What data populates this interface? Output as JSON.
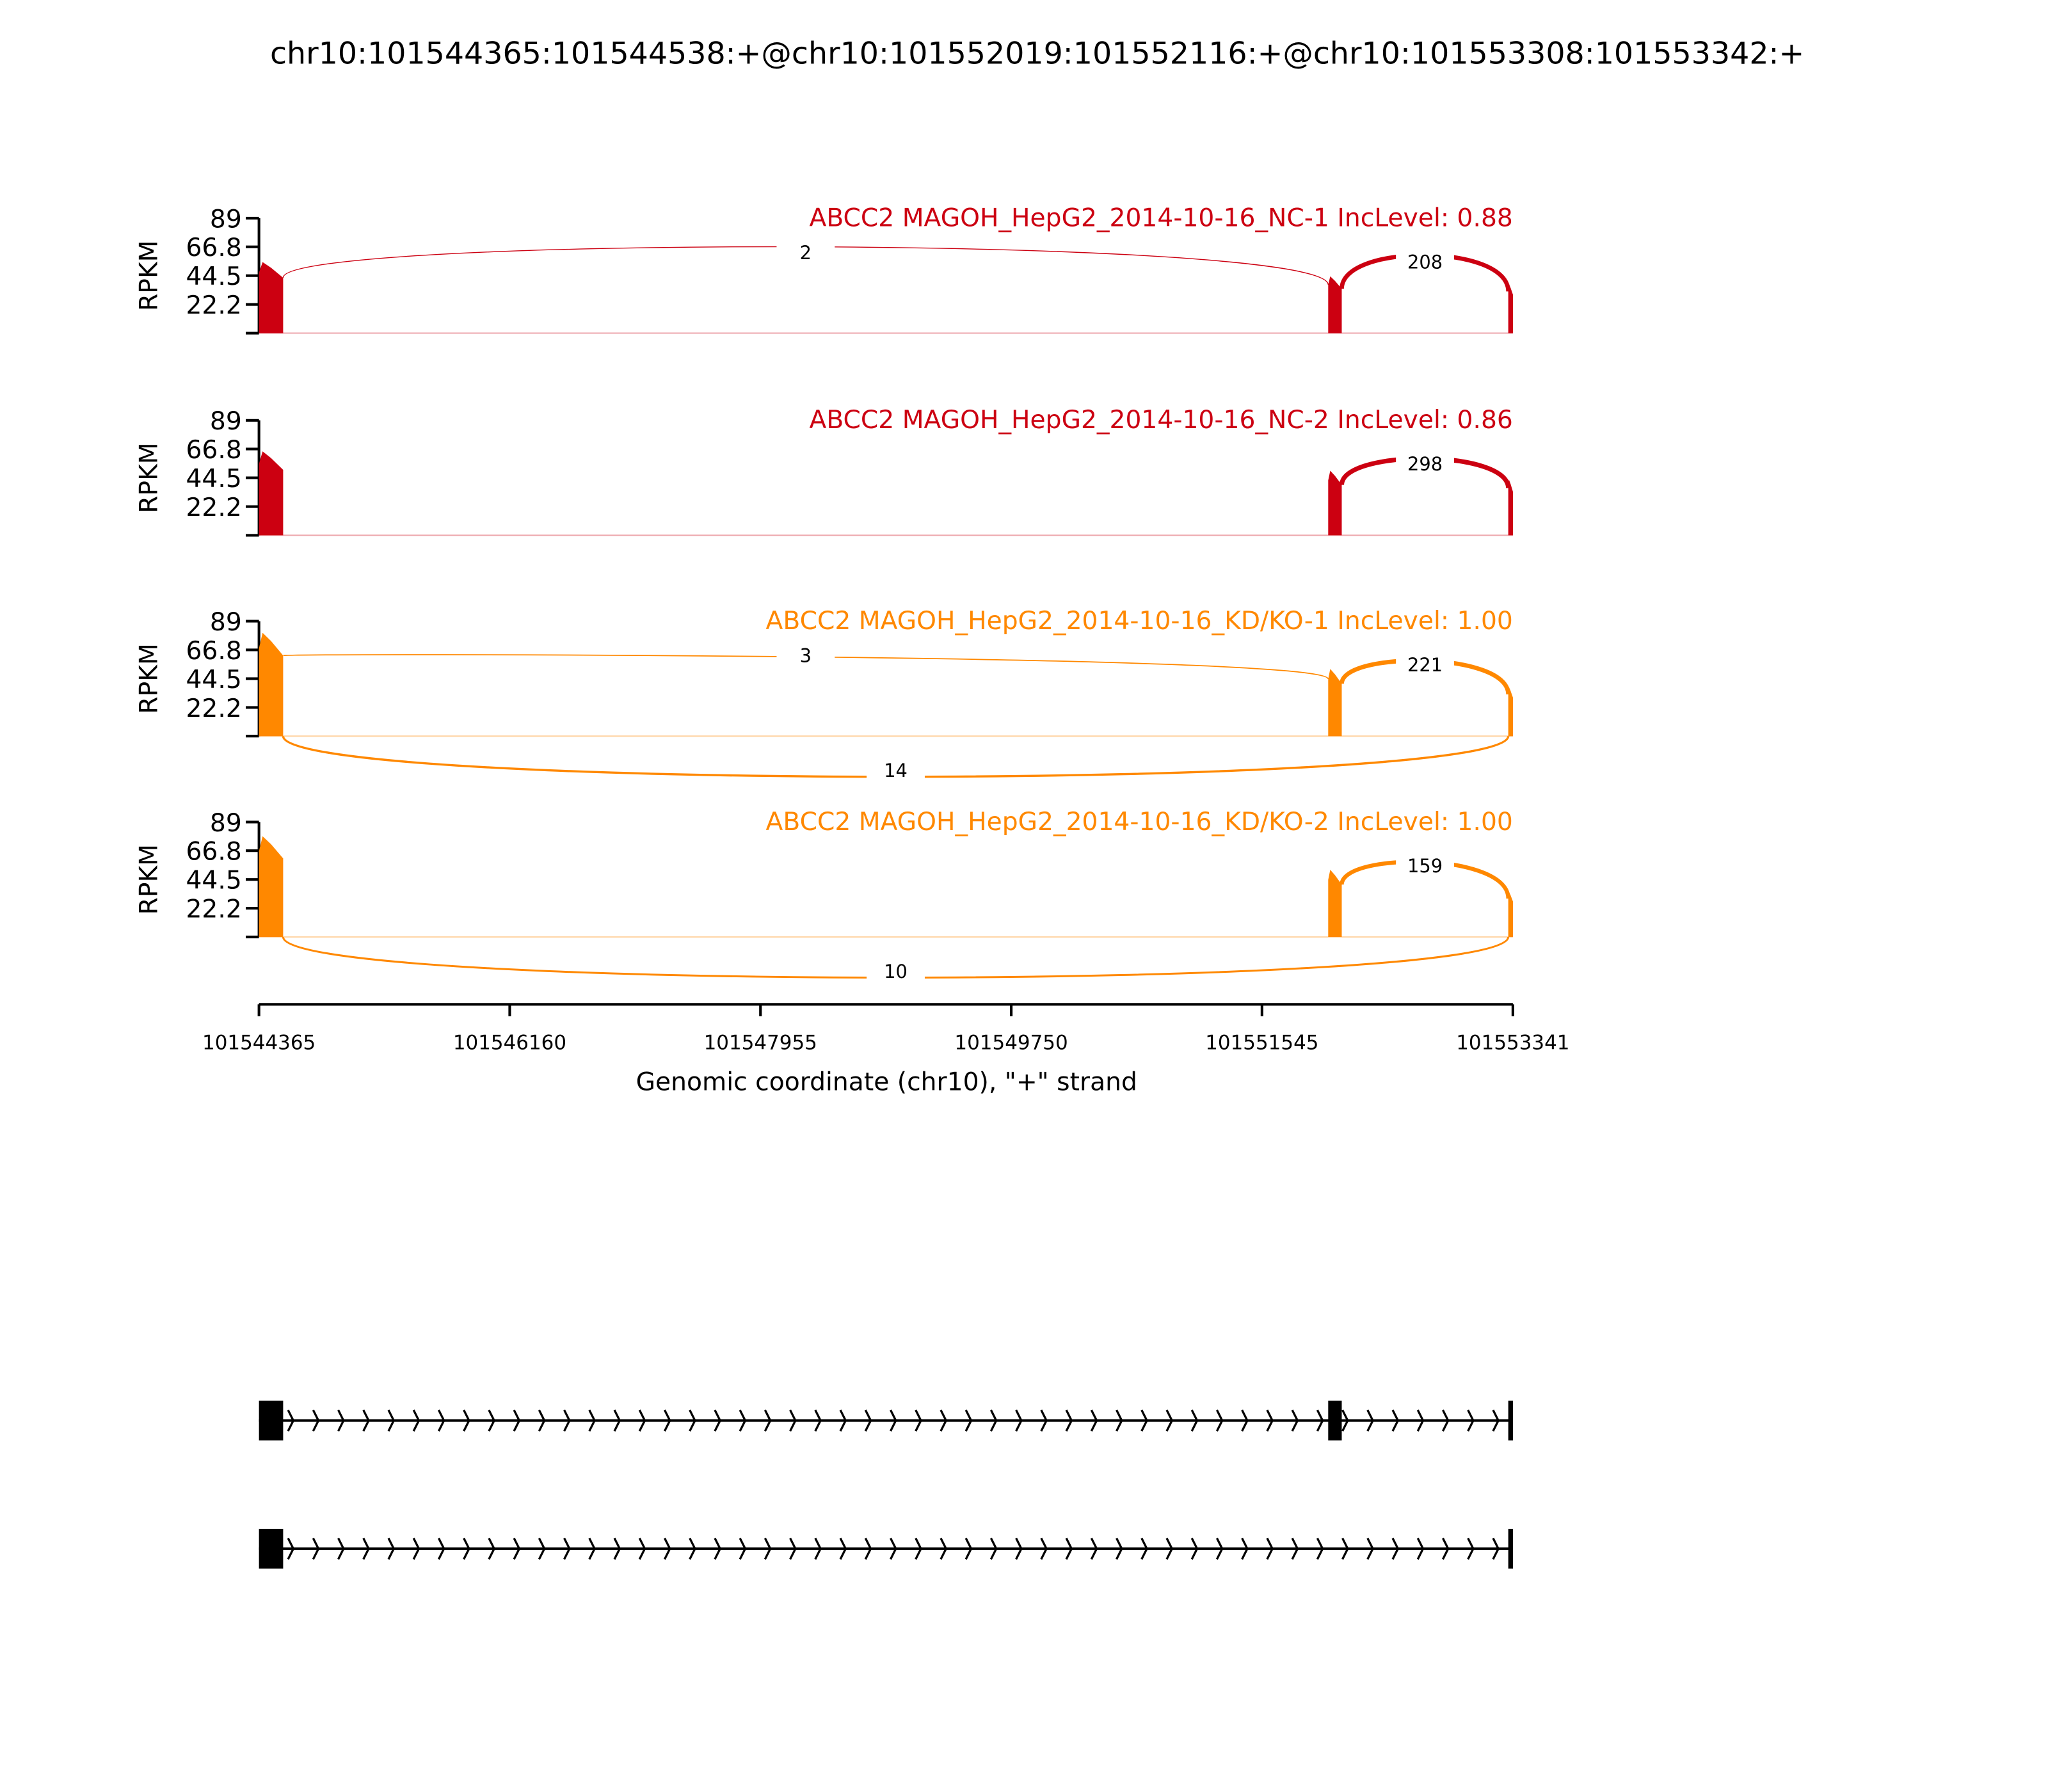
{
  "chart_data": {
    "type": "area",
    "title": "chr10:101544365:101544538:+@chr10:101552019:101552116:+@chr10:101553308:101553342:+",
    "xlabel": "Genomic coordinate (chr10), \"+\" strand",
    "ylabel": "RPKM",
    "xlim": [
      101544365,
      101553341
    ],
    "x_ticks": [
      "101544365",
      "101546160",
      "101547955",
      "101549750",
      "101551545",
      "101553341"
    ],
    "ylim": [
      0,
      89
    ],
    "y_ticks": [
      "89",
      "66.8",
      "44.5",
      "22.2"
    ],
    "exons": [
      {
        "start": 101544365,
        "end": 101544538
      },
      {
        "start": 101552019,
        "end": 101552116
      },
      {
        "start": 101553308,
        "end": 101553342
      }
    ],
    "colors": {
      "NC": "#cc0011",
      "KD": "#ff8800"
    },
    "panels": [
      {
        "label": "ABCC2 MAGOH_HepG2_2014-10-16_NC-1 IncLevel: 0.88",
        "group": "NC",
        "exon_coverage": [
          55,
          44,
          38
        ],
        "junctions": [
          {
            "from": 0,
            "to": 1,
            "count": "2",
            "side": "above"
          },
          {
            "from": 1,
            "to": 2,
            "count": "208",
            "side": "above"
          }
        ]
      },
      {
        "label": "ABCC2 MAGOH_HepG2_2014-10-16_NC-2 IncLevel: 0.86",
        "group": "NC",
        "exon_coverage": [
          65,
          50,
          43
        ],
        "junctions": [
          {
            "from": 1,
            "to": 2,
            "count": "298",
            "side": "above"
          }
        ]
      },
      {
        "label": "ABCC2 MAGOH_HepG2_2014-10-16_KD/KO-1 IncLevel: 1.00",
        "group": "KD",
        "exon_coverage": [
          80,
          52,
          38
        ],
        "junctions": [
          {
            "from": 0,
            "to": 1,
            "count": "3",
            "side": "above"
          },
          {
            "from": 1,
            "to": 2,
            "count": "221",
            "side": "above"
          },
          {
            "from": 0,
            "to": 2,
            "count": "14",
            "side": "below"
          }
        ]
      },
      {
        "label": "ABCC2 MAGOH_HepG2_2014-10-16_KD/KO-2 IncLevel: 1.00",
        "group": "KD",
        "exon_coverage": [
          78,
          52,
          35
        ],
        "junctions": [
          {
            "from": 1,
            "to": 2,
            "count": "159",
            "side": "above"
          },
          {
            "from": 0,
            "to": 2,
            "count": "10",
            "side": "below"
          }
        ]
      }
    ],
    "gene_models": [
      {
        "exons": [
          0,
          1,
          2
        ]
      },
      {
        "exons": [
          0,
          2
        ]
      }
    ]
  }
}
